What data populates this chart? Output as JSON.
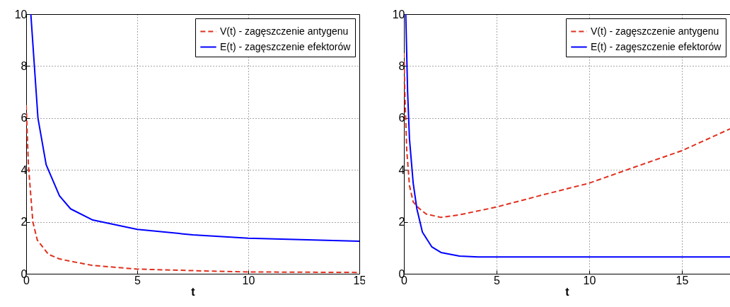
{
  "chart_data": [
    {
      "type": "line",
      "xlabel": "t",
      "xlim": [
        0,
        15
      ],
      "xticks": [
        0,
        5,
        10,
        15
      ],
      "ylim": [
        0,
        10
      ],
      "yticks": [
        0,
        2,
        4,
        6,
        8,
        10
      ],
      "grid": true,
      "legend": "top right",
      "series": [
        {
          "name": "V(t) - zagęszczenie antygenu",
          "color": "#e0301e",
          "line_style": "dashed",
          "x": [
            0,
            0.1,
            0.3,
            0.5,
            1,
            1.5,
            2,
            3,
            5,
            7.5,
            10,
            15
          ],
          "values": [
            6.5,
            4.2,
            2,
            1.3,
            0.75,
            0.57,
            0.48,
            0.32,
            0.18,
            0.12,
            0.07,
            0.05
          ]
        },
        {
          "name": "E(t) - zagęszczenie efektorów",
          "color": "#0000ff",
          "line_style": "solid",
          "x": [
            0.21,
            0.53,
            0.9,
            1.5,
            2,
            3,
            5,
            7.5,
            10,
            15
          ],
          "values": [
            10,
            6,
            4.2,
            3,
            2.5,
            2.07,
            1.71,
            1.5,
            1.37,
            1.25
          ]
        }
      ]
    },
    {
      "type": "line",
      "xlabel": "t",
      "xlim": [
        0,
        17.6
      ],
      "xticks": [
        0,
        5,
        10,
        15
      ],
      "ylim": [
        0,
        10
      ],
      "yticks": [
        0,
        2,
        4,
        6,
        8,
        10
      ],
      "grid": true,
      "legend": "top right",
      "series": [
        {
          "name": "V(t) - zagęszczenie antygenu",
          "color": "#e0301e",
          "line_style": "dashed",
          "x": [
            0,
            0.05,
            0.15,
            0.3,
            0.5,
            0.8,
            1.2,
            2,
            3,
            5,
            7.5,
            10,
            12.5,
            15,
            17.6
          ],
          "values": [
            8.5,
            7,
            4.8,
            3.4,
            2.77,
            2.53,
            2.3,
            2.17,
            2.27,
            2.57,
            3.04,
            3.49,
            4.12,
            4.74,
            5.58
          ]
        },
        {
          "name": "E(t) - zagęszczenie efektorów",
          "color": "#0000ff",
          "line_style": "solid",
          "x": [
            0.1,
            0.2,
            0.3,
            0.5,
            0.7,
            1,
            1.5,
            2,
            3,
            4,
            17.6
          ],
          "values": [
            10,
            7,
            5.2,
            3.5,
            2.5,
            1.6,
            1.04,
            0.82,
            0.68,
            0.65,
            0.65
          ]
        }
      ]
    }
  ]
}
